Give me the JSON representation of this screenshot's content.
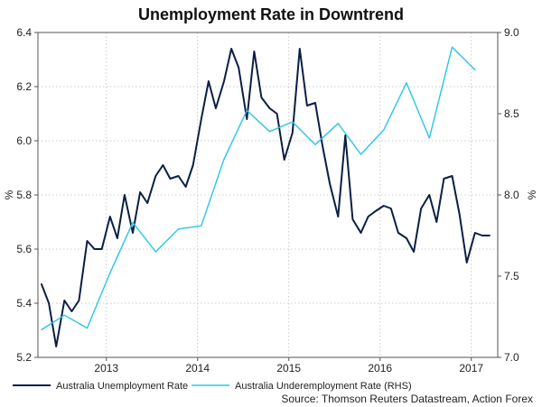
{
  "chart_data": {
    "type": "line",
    "title": "Unemployment Rate in Downtrend",
    "ylabel_left": "%",
    "ylabel_right": "%",
    "ylim_left": [
      5.2,
      6.4
    ],
    "ylim_right": [
      7.0,
      9.0
    ],
    "yticks_left": [
      "5.2",
      "5.4",
      "5.6",
      "5.8",
      "6.0",
      "6.2",
      "6.4"
    ],
    "yticks_right": [
      "7.0",
      "7.5",
      "8.0",
      "8.5",
      "9.0"
    ],
    "xlim": [
      2012.25,
      2017.29
    ],
    "x_ticks": [
      {
        "label": "2013",
        "x": 2013.0
      },
      {
        "label": "2014",
        "x": 2014.0
      },
      {
        "label": "2015",
        "x": 2015.0
      },
      {
        "label": "2016",
        "x": 2016.0
      },
      {
        "label": "2017",
        "x": 2017.0
      }
    ],
    "series": [
      {
        "name": "Australia Unemployment Rate",
        "axis": "left",
        "color": "#0a1f44",
        "x": [
          2012.29,
          2012.37,
          2012.45,
          2012.54,
          2012.62,
          2012.7,
          2012.79,
          2012.87,
          2012.95,
          2013.04,
          2013.12,
          2013.2,
          2013.29,
          2013.37,
          2013.45,
          2013.54,
          2013.62,
          2013.7,
          2013.79,
          2013.87,
          2013.95,
          2014.04,
          2014.12,
          2014.2,
          2014.29,
          2014.37,
          2014.45,
          2014.54,
          2014.62,
          2014.7,
          2014.79,
          2014.87,
          2014.95,
          2015.04,
          2015.12,
          2015.2,
          2015.29,
          2015.37,
          2015.45,
          2015.54,
          2015.62,
          2015.7,
          2015.79,
          2015.87,
          2015.95,
          2016.04,
          2016.12,
          2016.2,
          2016.29,
          2016.37,
          2016.45,
          2016.54,
          2016.62,
          2016.7,
          2016.79,
          2016.87,
          2016.95,
          2017.04,
          2017.12,
          2017.2
        ],
        "values": [
          5.47,
          5.4,
          5.24,
          5.41,
          5.37,
          5.41,
          5.63,
          5.6,
          5.6,
          5.72,
          5.64,
          5.8,
          5.66,
          5.81,
          5.77,
          5.87,
          5.91,
          5.86,
          5.87,
          5.83,
          5.91,
          6.08,
          6.22,
          6.12,
          6.22,
          6.34,
          6.27,
          6.08,
          6.33,
          6.16,
          6.12,
          6.1,
          5.93,
          6.03,
          6.34,
          6.13,
          6.14,
          5.98,
          5.84,
          5.72,
          6.02,
          5.71,
          5.66,
          5.72,
          5.74,
          5.76,
          5.75,
          5.66,
          5.64,
          5.59,
          5.75,
          5.8,
          5.7,
          5.86,
          5.87,
          5.73,
          5.55,
          5.66,
          5.65,
          5.65
        ]
      },
      {
        "name": "Australia Underemployment Rate (RHS)",
        "axis": "right",
        "color": "#29c5ea",
        "x": [
          2012.29,
          2012.54,
          2012.79,
          2013.04,
          2013.29,
          2013.54,
          2013.79,
          2014.04,
          2014.29,
          2014.54,
          2014.79,
          2015.04,
          2015.29,
          2015.54,
          2015.79,
          2016.04,
          2016.29,
          2016.54,
          2016.79,
          2017.04
        ],
        "values": [
          7.17,
          7.26,
          7.18,
          7.52,
          7.83,
          7.65,
          7.79,
          7.81,
          8.22,
          8.52,
          8.39,
          8.45,
          8.31,
          8.44,
          8.25,
          8.4,
          8.69,
          8.35,
          8.91,
          8.77
        ]
      }
    ],
    "legend": [
      {
        "label": "Australia Unemployment Rate",
        "color": "#0a1f44"
      },
      {
        "label": "Australia Underemployment Rate (RHS)",
        "color": "#29c5ea"
      }
    ],
    "legend_position": "bottom-left",
    "grid": true,
    "source": "Source: Thomson Reuters Datastream, Action Forex"
  }
}
